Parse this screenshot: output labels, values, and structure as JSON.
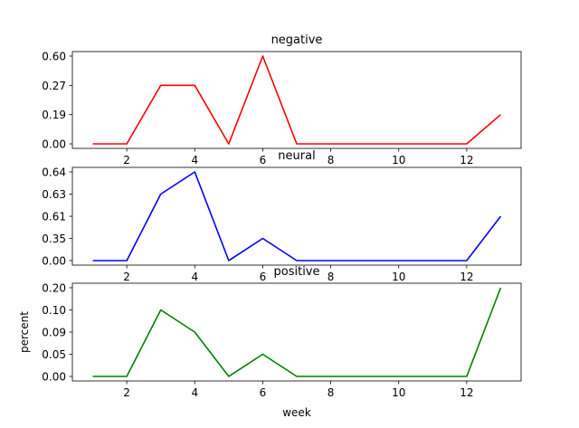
{
  "chart_data": [
    {
      "type": "line",
      "title": "negative",
      "xlabel": "",
      "ylabel": "",
      "x": [
        1,
        2,
        3,
        4,
        5,
        6,
        7,
        8,
        9,
        10,
        11,
        12,
        13
      ],
      "series": [
        {
          "values": [
            0.0,
            0.0,
            0.27,
            0.27,
            0.0,
            0.6,
            0.0,
            0.0,
            0.0,
            0.0,
            0.0,
            0.0,
            0.19
          ],
          "color": "#ff0000"
        }
      ],
      "x_ticks": [
        "2",
        "4",
        "6",
        "8",
        "10",
        "12"
      ],
      "y_ticks": [
        "0.00",
        "0.19",
        "0.27",
        "0.60"
      ],
      "xlim": [
        0.4,
        13.6
      ],
      "grid": false
    },
    {
      "type": "line",
      "title": "neural",
      "xlabel": "",
      "ylabel": "",
      "x": [
        1,
        2,
        3,
        4,
        5,
        6,
        7,
        8,
        9,
        10,
        11,
        12,
        13
      ],
      "series": [
        {
          "values": [
            0.0,
            0.0,
            0.63,
            0.64,
            0.0,
            0.35,
            0.0,
            0.0,
            0.0,
            0.0,
            0.0,
            0.0,
            0.61
          ],
          "color": "#0000ff"
        }
      ],
      "x_ticks": [
        "2",
        "4",
        "6",
        "8",
        "10",
        "12"
      ],
      "y_ticks": [
        "0.00",
        "0.35",
        "0.61",
        "0.63",
        "0.64"
      ],
      "xlim": [
        0.4,
        13.6
      ],
      "grid": false
    },
    {
      "type": "line",
      "title": "positive",
      "xlabel": "week",
      "ylabel": "percent",
      "x": [
        1,
        2,
        3,
        4,
        5,
        6,
        7,
        8,
        9,
        10,
        11,
        12,
        13
      ],
      "series": [
        {
          "values": [
            0.0,
            0.0,
            0.1,
            0.09,
            0.0,
            0.05,
            0.0,
            0.0,
            0.0,
            0.0,
            0.0,
            0.0,
            0.2
          ],
          "color": "#008000"
        }
      ],
      "x_ticks": [
        "2",
        "4",
        "6",
        "8",
        "10",
        "12"
      ],
      "y_ticks": [
        "0.00",
        "0.05",
        "0.09",
        "0.10",
        "0.20"
      ],
      "xlim": [
        0.4,
        13.6
      ],
      "grid": false
    }
  ]
}
